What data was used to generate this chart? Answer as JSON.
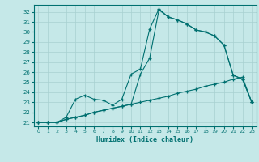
{
  "xlabel": "Humidex (Indice chaleur)",
  "bg_color": "#c5e8e8",
  "grid_color": "#a8d0d0",
  "line_color": "#007070",
  "xlim": [
    -0.5,
    23.5
  ],
  "ylim": [
    20.6,
    32.7
  ],
  "xticks": [
    0,
    1,
    2,
    3,
    4,
    5,
    6,
    7,
    8,
    9,
    10,
    11,
    12,
    13,
    14,
    15,
    16,
    17,
    18,
    19,
    20,
    21,
    22,
    23
  ],
  "yticks": [
    21,
    22,
    23,
    24,
    25,
    26,
    27,
    28,
    29,
    30,
    31,
    32
  ],
  "line1_x": [
    0,
    1,
    2,
    3,
    4,
    5,
    6,
    7,
    8,
    9,
    10,
    11,
    12,
    13,
    14,
    15,
    16,
    17,
    18,
    19,
    20,
    21,
    22,
    23
  ],
  "line1_y": [
    21.0,
    21.0,
    21.0,
    21.3,
    21.5,
    21.7,
    22.0,
    22.2,
    22.4,
    22.6,
    22.8,
    23.0,
    23.2,
    23.4,
    23.6,
    23.9,
    24.1,
    24.3,
    24.6,
    24.8,
    25.0,
    25.3,
    25.5,
    23.0
  ],
  "line2_x": [
    0,
    1,
    2,
    3,
    4,
    5,
    6,
    7,
    8,
    9,
    10,
    11,
    12,
    13,
    14,
    15,
    16,
    17,
    18,
    19,
    20,
    21,
    22,
    23
  ],
  "line2_y": [
    21.0,
    21.0,
    21.0,
    21.3,
    21.5,
    21.7,
    22.0,
    22.2,
    22.4,
    22.6,
    22.8,
    25.8,
    27.4,
    32.2,
    31.5,
    31.2,
    30.8,
    30.2,
    30.0,
    29.6,
    28.7,
    25.7,
    25.3,
    23.0
  ],
  "line3_x": [
    0,
    1,
    2,
    3,
    4,
    5,
    6,
    7,
    8,
    9,
    10,
    11,
    12,
    13,
    14,
    15,
    16,
    17,
    18,
    19,
    20,
    21,
    22,
    23
  ],
  "line3_y": [
    21.0,
    21.0,
    21.0,
    21.5,
    23.3,
    23.7,
    23.3,
    23.2,
    22.7,
    23.3,
    25.8,
    26.3,
    30.3,
    32.3,
    31.5,
    31.2,
    30.8,
    30.2,
    30.0,
    29.6,
    28.7,
    25.7,
    25.3,
    23.0
  ]
}
